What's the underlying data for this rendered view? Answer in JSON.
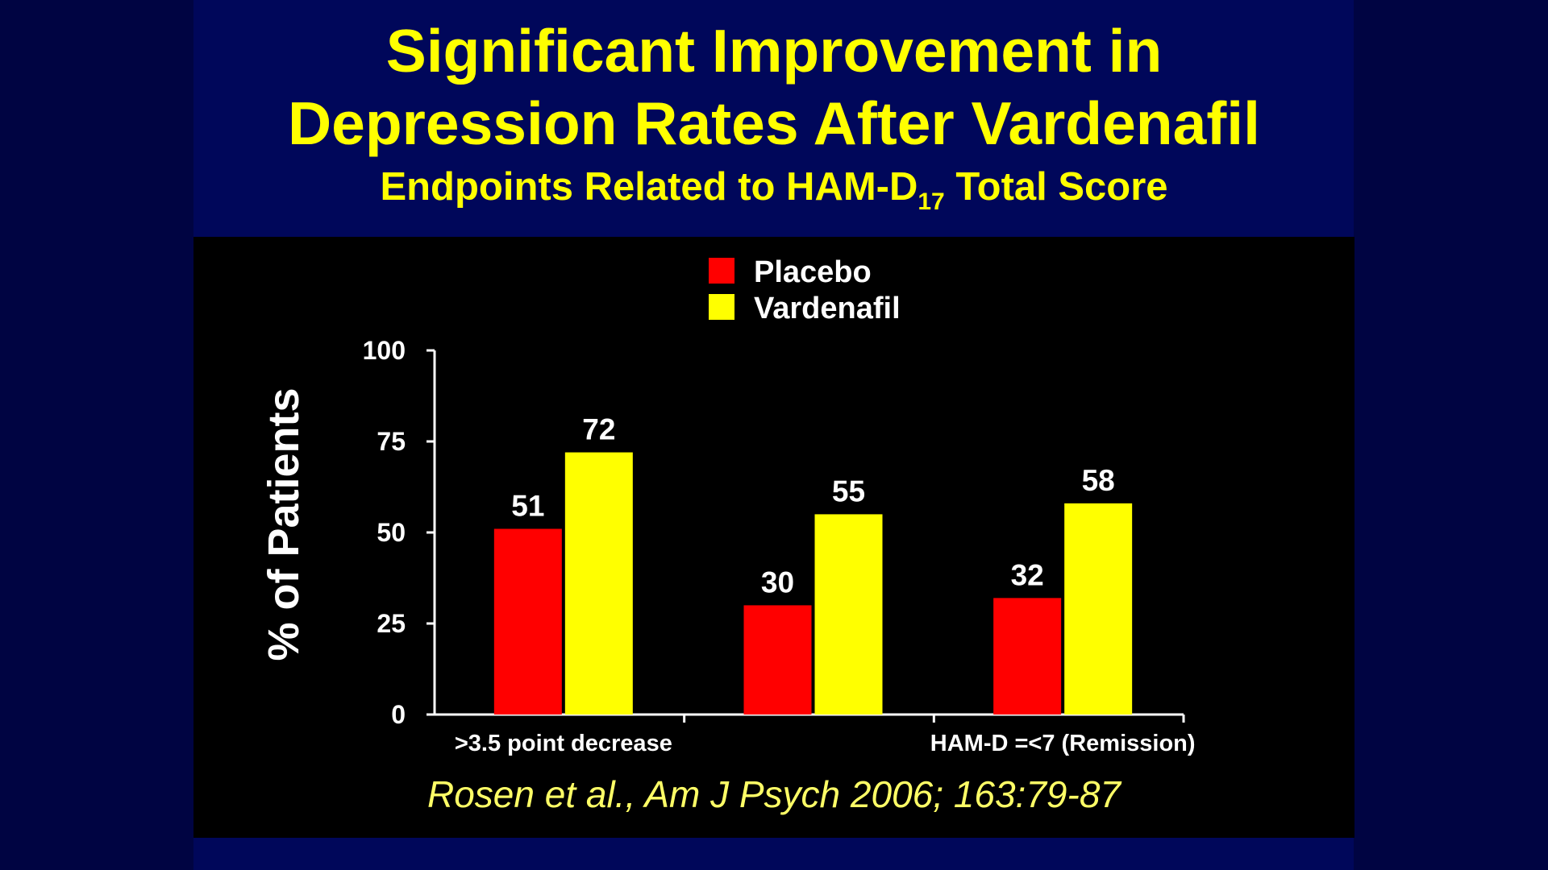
{
  "slide": {
    "title_line1": "Significant Improvement in",
    "title_line2": "Depression Rates After Vardenafil",
    "subtitle_main": "Endpoints Related to HAM-D",
    "subtitle_sub": "17",
    "subtitle_end": " Total Score",
    "citation": "Rosen et al., Am J Psych 2006; 163:79-87",
    "background_color": "#00075a",
    "title_color": "#ffff00"
  },
  "chart_data": {
    "type": "bar",
    "title": "",
    "ylabel": "% of Patients",
    "xlabel": "",
    "ylim": [
      0,
      100
    ],
    "yticks": [
      0,
      25,
      50,
      75,
      100
    ],
    "categories": [
      ">3.5 point decrease",
      "",
      "HAM-D =<7 (Remission)"
    ],
    "series": [
      {
        "name": "Placebo",
        "color": "#ff0000",
        "values": [
          51,
          30,
          32
        ]
      },
      {
        "name": "Vardenafil",
        "color": "#ffff00",
        "values": [
          72,
          55,
          58
        ]
      }
    ],
    "legend_position": "top-center",
    "grid": false
  }
}
